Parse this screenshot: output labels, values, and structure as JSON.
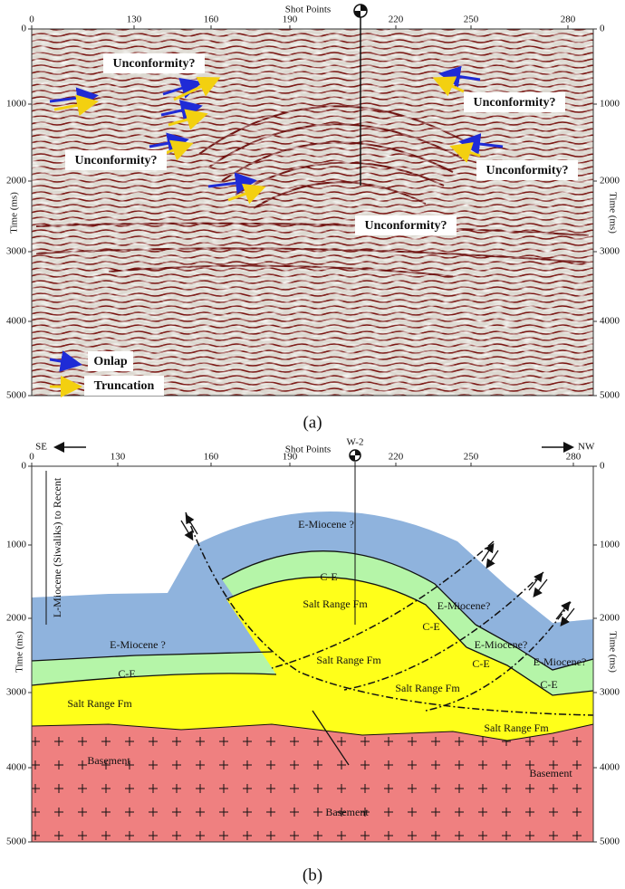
{
  "panel_a": {
    "x_axis_title": "Shot Points",
    "y_axis_title": "Time (ms)",
    "x_ticks": [
      0,
      130,
      160,
      190,
      220,
      250,
      280
    ],
    "y_ticks": [
      0,
      1000,
      2000,
      3000,
      4000,
      5000
    ],
    "annotations": [
      "Unconformity?",
      "Unconformity?",
      "Unconformity?",
      "Unconformity?",
      "Unconformity?"
    ],
    "legend": [
      "Onlap",
      "Truncation"
    ],
    "caption": "(a)"
  },
  "panel_b": {
    "x_axis_title": "Shot Points",
    "well": "W-2",
    "direction_left": "SE",
    "direction_right": "NW",
    "y_axis_title": "Time (ms)",
    "x_ticks": [
      0,
      130,
      160,
      190,
      220,
      250,
      280
    ],
    "y_ticks": [
      0,
      1000,
      2000,
      3000,
      4000,
      5000
    ],
    "age_range": "L-Miocene (Siwaliks) to Recent",
    "units": [
      "E-Miocene ?",
      "C-E",
      "Salt Range Fm",
      "E-Miocene?",
      "C-E",
      "E-Miocene?",
      "C-E",
      "E-Miocene?",
      "Salt Range Fm",
      "C-E",
      "Salt Range Fm",
      "Salt Range Fm",
      "E-Miocene ?",
      "C-E",
      "Salt Range Fm",
      "Basement",
      "Basement",
      "Basement"
    ],
    "caption": "(b)"
  }
}
